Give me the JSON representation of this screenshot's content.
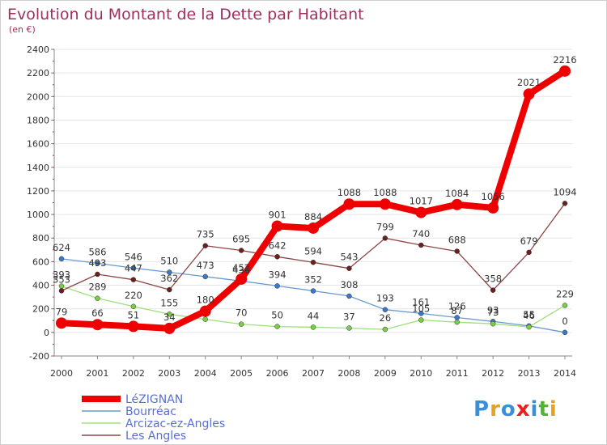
{
  "title": "Evolution du Montant de la Dette par Habitant",
  "unit": "(en €)",
  "colors": {
    "title": "#a0305a",
    "grid": "#e6e6e6",
    "axis": "#888888",
    "legend_text": "#5a6fd0"
  },
  "logo": {
    "letters": [
      "P",
      "r",
      "o",
      "x",
      "i",
      "t",
      "i"
    ],
    "colors": [
      "#3a8fd8",
      "#e8a020",
      "#3a8fd8",
      "#e82020",
      "#3a8fd8",
      "#55b040",
      "#e8a020"
    ]
  },
  "chart_data": {
    "type": "line",
    "title": "Evolution du Montant de la Dette par Habitant",
    "ylabel": "(en €)",
    "ylim": [
      -200,
      2400
    ],
    "yticks": [
      -200,
      0,
      200,
      400,
      600,
      800,
      1000,
      1200,
      1400,
      1600,
      1800,
      2000,
      2200,
      2400
    ],
    "x": [
      "2000",
      "2001",
      "2002",
      "2003",
      "2004",
      "2005",
      "2006",
      "2007",
      "2008",
      "2009",
      "2010",
      "2011",
      "2012",
      "2013",
      "2014"
    ],
    "grid": "horizontal",
    "legend_position": "bottom-left",
    "series": [
      {
        "name": "LéZIGNAN",
        "color": "#ee0000",
        "weight": "thick",
        "values": [
          79,
          66,
          51,
          34,
          180,
          452,
          901,
          884,
          1088,
          1088,
          1017,
          1084,
          1056,
          2021,
          2216
        ]
      },
      {
        "name": "Bourréac",
        "color": "#6a9bd0",
        "point": "#3a78c8",
        "weight": "thin",
        "values": [
          624,
          586,
          546,
          510,
          473,
          436,
          394,
          352,
          308,
          193,
          161,
          126,
          93,
          55,
          0
        ]
      },
      {
        "name": "Arcizac-ez-Angles",
        "color": "#9ee07a",
        "point": "#7ccc44",
        "weight": "thin",
        "values": [
          393,
          289,
          220,
          155,
          111,
          70,
          50,
          44,
          37,
          26,
          105,
          87,
          73,
          46,
          229
        ]
      },
      {
        "name": "Les Angles",
        "color": "#8b4545",
        "point": "#6b1f1f",
        "weight": "thin",
        "values": [
          353,
          493,
          447,
          362,
          735,
          695,
          642,
          594,
          543,
          799,
          740,
          688,
          358,
          679,
          1094
        ]
      }
    ],
    "data_labels": {
      "LéZIGNAN": [
        "79",
        "66",
        "51",
        "34",
        "180",
        "452",
        "901",
        "884",
        "1088",
        "1088",
        "1017",
        "1084",
        "1056",
        "2021",
        "2216"
      ],
      "Bourréac": [
        "624",
        "586",
        "546",
        "510",
        "473",
        "436",
        "394",
        "352",
        "308",
        "193",
        "161",
        "126",
        "93",
        "55",
        "0"
      ],
      "Arcizac-ez-Angles": [
        "393",
        "289",
        "220",
        "155",
        "",
        "70",
        "50",
        "44",
        "37",
        "26",
        "105",
        "87",
        "73",
        "46",
        "229"
      ],
      "Les Angles": [
        "353",
        "493",
        "447",
        "362",
        "735",
        "695",
        "642",
        "594",
        "543",
        "799",
        "740",
        "688",
        "358",
        "679",
        "1094"
      ]
    }
  }
}
